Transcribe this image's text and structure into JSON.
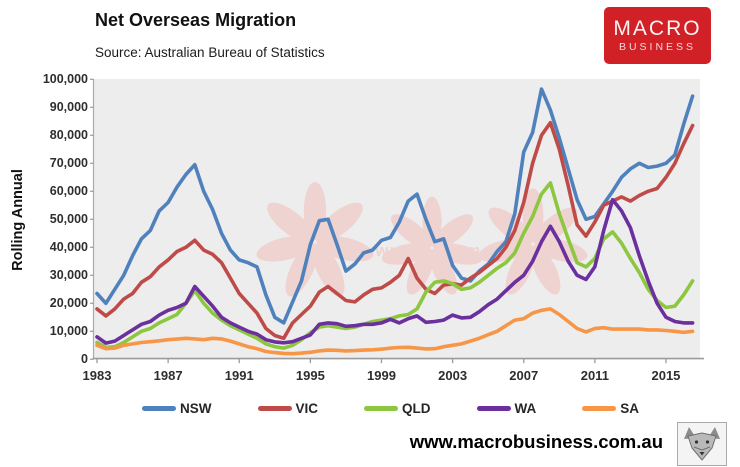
{
  "header": {
    "title": "Net Overseas Migration",
    "source": "Source: Australian Bureau of Statistics",
    "logo": {
      "line1": "MACRO",
      "line2": "BUSINESS",
      "bg_color": "#d22027",
      "text_color": "#ffffff"
    }
  },
  "y_axis": {
    "title": "Rolling Annual",
    "tick_values": [
      0,
      10000,
      20000,
      30000,
      40000,
      50000,
      60000,
      70000,
      80000,
      90000,
      100000
    ],
    "tick_labels": [
      "0",
      "10,000",
      "20,000",
      "30,000",
      "40,000",
      "50,000",
      "60,000",
      "70,000",
      "80,000",
      "90,000",
      "100,000"
    ]
  },
  "x_axis": {
    "tick_years": [
      1983,
      1987,
      1991,
      1995,
      1999,
      2003,
      2007,
      2011,
      2015
    ]
  },
  "legend": {
    "items": [
      {
        "label": "NSW",
        "color": "#4f81bd"
      },
      {
        "label": "VIC",
        "color": "#bf4b48"
      },
      {
        "label": "QLD",
        "color": "#8dc63f"
      },
      {
        "label": "WA",
        "color": "#6b2f9e"
      },
      {
        "label": "SA",
        "color": "#f79646"
      }
    ]
  },
  "watermark": {
    "caption": "www.···.com",
    "color": "#efc3bf"
  },
  "footer": {
    "url": "www.macrobusiness.com.au"
  },
  "chart_data": {
    "type": "line",
    "title": "Net Overseas Migration",
    "xlabel": "",
    "ylabel": "Rolling Annual",
    "ylim": [
      0,
      100000
    ],
    "x_start": 1983,
    "x_step": 0.5,
    "x_end": 2016.5,
    "grid": false,
    "plot_bg": "#ededee",
    "legend_position": "bottom",
    "series": [
      {
        "name": "NSW",
        "color": "#4f81bd",
        "values": [
          23500,
          20000,
          25000,
          30000,
          37000,
          43000,
          46000,
          53000,
          56000,
          61500,
          66000,
          69500,
          60000,
          53500,
          45000,
          39000,
          35500,
          34500,
          33000,
          23000,
          15000,
          13000,
          20500,
          28000,
          41000,
          49500,
          50000,
          41000,
          31500,
          34000,
          38000,
          39000,
          42500,
          43500,
          49000,
          56500,
          59000,
          50000,
          42000,
          43000,
          33500,
          29000,
          28000,
          31500,
          34000,
          38500,
          42000,
          52000,
          74000,
          81000,
          96500,
          89000,
          79000,
          68000,
          57000,
          50000,
          51000,
          55500,
          60000,
          65000,
          68000,
          70000,
          68500,
          69000,
          70000,
          73000,
          84000,
          94000
        ]
      },
      {
        "name": "VIC",
        "color": "#bf4b48",
        "values": [
          18000,
          15500,
          18000,
          21500,
          23500,
          27500,
          29500,
          33000,
          35500,
          38500,
          40000,
          42500,
          39000,
          37500,
          34500,
          29000,
          23500,
          20000,
          16500,
          11000,
          8500,
          7500,
          13000,
          16000,
          19000,
          24000,
          26000,
          23500,
          21000,
          20500,
          23000,
          25000,
          25500,
          27500,
          30000,
          36000,
          29000,
          25000,
          23500,
          26500,
          27000,
          26500,
          29000,
          31000,
          33500,
          36000,
          40000,
          46000,
          56000,
          70000,
          80000,
          84500,
          75000,
          62000,
          48000,
          44000,
          49000,
          55000,
          56500,
          58000,
          56500,
          58500,
          60000,
          61000,
          65000,
          70000,
          77000,
          83500
        ]
      },
      {
        "name": "QLD",
        "color": "#8dc63f",
        "values": [
          6000,
          4200,
          4500,
          6000,
          8000,
          10000,
          11000,
          13000,
          14500,
          16000,
          20000,
          24500,
          20000,
          16500,
          14000,
          12000,
          10500,
          9000,
          7500,
          5500,
          4500,
          4000,
          5000,
          7000,
          9500,
          11500,
          12000,
          11500,
          11000,
          11500,
          12500,
          13500,
          14000,
          14500,
          15500,
          16000,
          18000,
          24000,
          27500,
          28000,
          27000,
          25000,
          25500,
          27500,
          30000,
          32500,
          34500,
          38000,
          45000,
          51000,
          59000,
          63000,
          52000,
          43000,
          34500,
          33000,
          36000,
          43000,
          45500,
          41500,
          36000,
          31000,
          25000,
          21000,
          18500,
          19000,
          23000,
          28000
        ]
      },
      {
        "name": "WA",
        "color": "#6b2f9e",
        "values": [
          8000,
          5800,
          6500,
          8500,
          10500,
          12500,
          13500,
          15800,
          17500,
          18500,
          20000,
          26000,
          22500,
          19000,
          15000,
          13000,
          11500,
          10000,
          9000,
          7000,
          6200,
          5900,
          6300,
          7500,
          8700,
          12500,
          13000,
          12700,
          11800,
          12000,
          12500,
          12500,
          13000,
          14300,
          13000,
          14500,
          15500,
          13200,
          13500,
          14000,
          15800,
          14800,
          15000,
          17000,
          19500,
          21500,
          24500,
          27500,
          30000,
          35000,
          42000,
          47500,
          42000,
          35000,
          30000,
          28500,
          33000,
          46000,
          57000,
          53000,
          47000,
          37000,
          28000,
          20000,
          15000,
          13500,
          13000,
          13000
        ]
      },
      {
        "name": "SA",
        "color": "#f79646",
        "values": [
          5000,
          3800,
          4000,
          5000,
          5500,
          6000,
          6300,
          6600,
          7000,
          7200,
          7500,
          7300,
          7000,
          7500,
          7300,
          6500,
          5500,
          4500,
          3800,
          2800,
          2400,
          2100,
          2000,
          2200,
          2500,
          3000,
          3300,
          3200,
          3000,
          3100,
          3300,
          3400,
          3600,
          4000,
          4200,
          4300,
          4000,
          3700,
          3800,
          4500,
          5000,
          5500,
          6500,
          7500,
          8800,
          10000,
          12000,
          14000,
          14500,
          16500,
          17500,
          18000,
          16000,
          13500,
          11000,
          9800,
          11000,
          11300,
          10800,
          10800,
          10800,
          10800,
          10500,
          10500,
          10300,
          10000,
          9600,
          10000
        ]
      }
    ]
  }
}
